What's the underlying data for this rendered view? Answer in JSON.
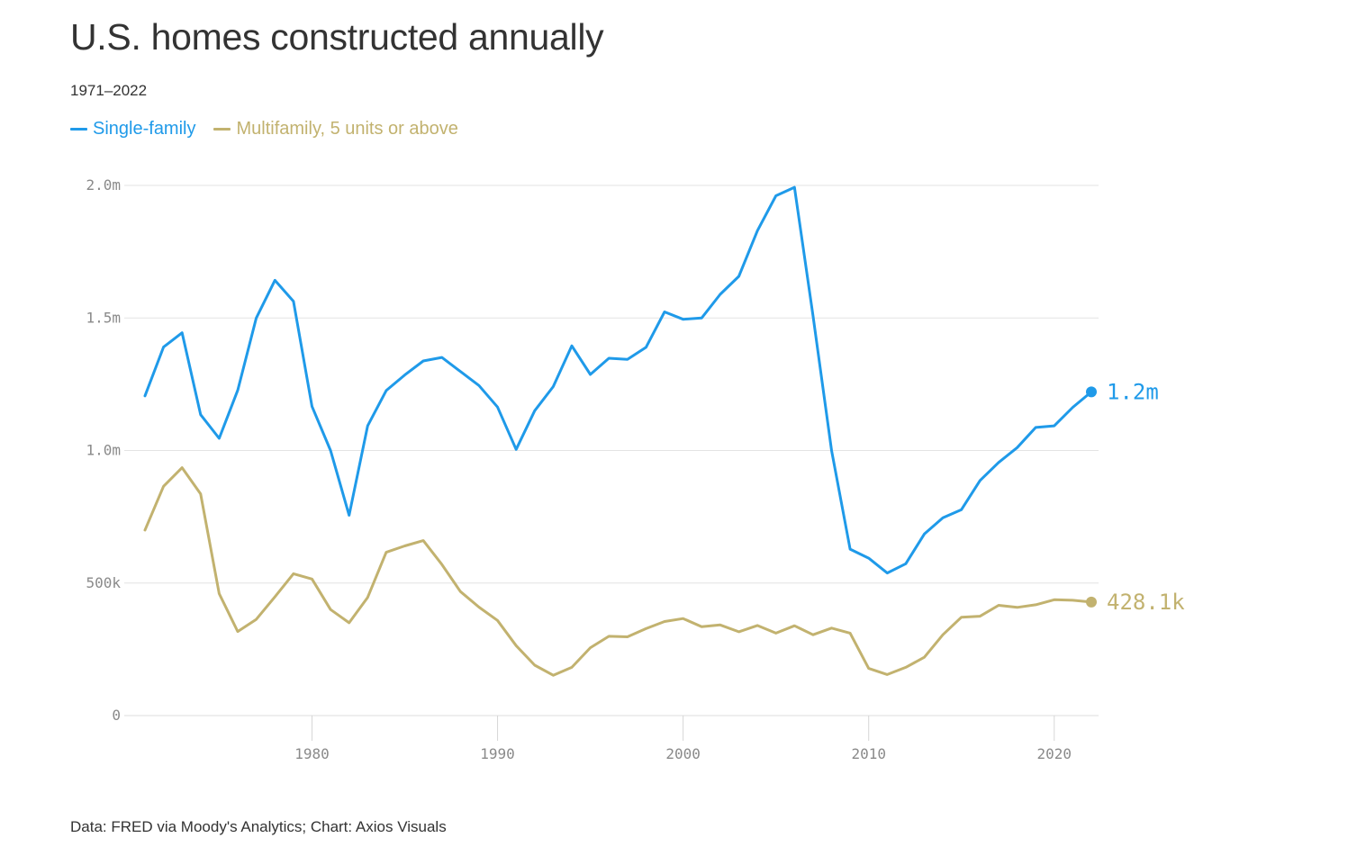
{
  "chart_data": {
    "type": "line",
    "title": "U.S. homes constructed annually",
    "subtitle": "1971–2022",
    "source": "Data: FRED via Moody's Analytics; Chart: Axios Visuals",
    "xlabel": "",
    "ylabel": "",
    "xlim": [
      1971,
      2022
    ],
    "ylim": [
      0,
      2000000
    ],
    "grid": true,
    "legend_position": "top-left",
    "x_ticks": [
      {
        "value": 1980,
        "label": "1980"
      },
      {
        "value": 1990,
        "label": "1990"
      },
      {
        "value": 2000,
        "label": "2000"
      },
      {
        "value": 2010,
        "label": "2010"
      },
      {
        "value": 2020,
        "label": "2020"
      }
    ],
    "y_ticks": [
      {
        "value": 0,
        "label": "0"
      },
      {
        "value": 500000,
        "label": "500k"
      },
      {
        "value": 1000000,
        "label": "1.0m"
      },
      {
        "value": 1500000,
        "label": "1.5m"
      },
      {
        "value": 2000000,
        "label": "2.0m"
      }
    ],
    "x": [
      1971,
      1972,
      1973,
      1974,
      1975,
      1976,
      1977,
      1978,
      1979,
      1980,
      1981,
      1982,
      1983,
      1984,
      1985,
      1986,
      1987,
      1988,
      1989,
      1990,
      1991,
      1992,
      1993,
      1994,
      1995,
      1996,
      1997,
      1998,
      1999,
      2000,
      2001,
      2002,
      2003,
      2004,
      2005,
      2006,
      2007,
      2008,
      2009,
      2010,
      2011,
      2012,
      2013,
      2014,
      2015,
      2016,
      2017,
      2018,
      2019,
      2020,
      2021,
      2022
    ],
    "series": [
      {
        "name": "Single-family",
        "color": "#1f9ae9",
        "end_label": "1.2m",
        "values": [
          1206000,
          1390000,
          1444000,
          1135000,
          1046000,
          1227000,
          1500000,
          1642000,
          1563000,
          1166000,
          1000000,
          756000,
          1093000,
          1226000,
          1285000,
          1338000,
          1351000,
          1298000,
          1245000,
          1164000,
          1004000,
          1150000,
          1241000,
          1395000,
          1287000,
          1348000,
          1344000,
          1389000,
          1523000,
          1495000,
          1500000,
          1589000,
          1657000,
          1829000,
          1961000,
          1993000,
          1508000,
          1000000,
          628000,
          594000,
          538000,
          573000,
          685000,
          746000,
          777000,
          887000,
          955000,
          1011000,
          1087000,
          1093000,
          1163000,
          1221000
        ]
      },
      {
        "name": "Multifamily, 5 units or above",
        "color": "#c2b26f",
        "end_label": "428.1k",
        "values": [
          700000,
          865000,
          935000,
          836000,
          460000,
          317000,
          363000,
          448000,
          535000,
          515000,
          400000,
          350000,
          446000,
          616000,
          640000,
          660000,
          570000,
          468000,
          409000,
          359000,
          264000,
          190000,
          152000,
          182000,
          256000,
          299000,
          297000,
          328000,
          355000,
          366000,
          335000,
          342000,
          316000,
          340000,
          311000,
          339000,
          305000,
          330000,
          311000,
          178000,
          155000,
          182000,
          220000,
          305000,
          371000,
          375000,
          416000,
          408000,
          418000,
          437000,
          435000,
          428100
        ]
      }
    ]
  }
}
